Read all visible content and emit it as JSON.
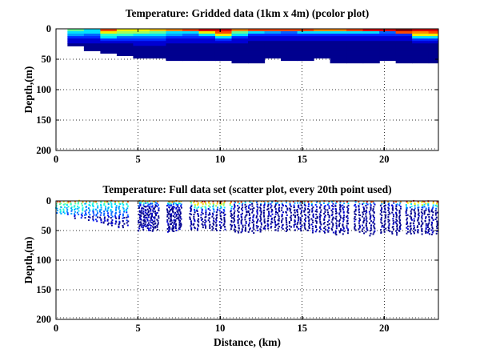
{
  "window": {
    "background": "#ffffff",
    "text_color": "#000000",
    "axis_color": "#000000",
    "grid_style": "dotted"
  },
  "palette_jet": [
    "#00008F",
    "#0000D2",
    "#0028FF",
    "#0064FF",
    "#00A0FF",
    "#00E0FF",
    "#2BFFD2",
    "#64FF96",
    "#A5FF55",
    "#F2F200",
    "#FFC800",
    "#FF8C00",
    "#FF4B00",
    "#E10000",
    "#960000"
  ],
  "chart_data": [
    {
      "type": "heatmap",
      "title": "Temperature: Gridded data (1km x 4m) (pcolor plot)",
      "xlabel": "",
      "ylabel": "Depth,(m)",
      "xlim": [
        0,
        23.3
      ],
      "ylim": [
        0,
        200
      ],
      "y_axis_direction": "reversed (depth increases downward)",
      "xticks": [
        0,
        5,
        10,
        15,
        20
      ],
      "yticks": [
        0,
        50,
        100,
        150,
        200
      ],
      "grid": "dotted",
      "cell_width_km": 1,
      "cell_height_m": 4,
      "note": "columns = [start_km, [jet palette indices for each 4m cell from surface down]]; white below = no data",
      "columns": [
        [
          0.7,
          [
            7,
            5,
            4,
            2,
            1,
            1,
            0
          ]
        ],
        [
          1.7,
          [
            5,
            5,
            3,
            2,
            1,
            1,
            0,
            0,
            0
          ]
        ],
        [
          2.7,
          [
            12,
            9,
            6,
            5,
            2,
            1,
            0,
            0,
            0,
            0
          ]
        ],
        [
          3.7,
          [
            9,
            8,
            6,
            3,
            2,
            1,
            0,
            0,
            0,
            0,
            0
          ]
        ],
        [
          4.7,
          [
            9,
            8,
            5,
            3,
            2,
            1,
            1,
            0,
            0,
            0,
            0,
            0
          ]
        ],
        [
          5.7,
          [
            10,
            7,
            5,
            3,
            2,
            1,
            1,
            0,
            0,
            0,
            0,
            0
          ]
        ],
        [
          6.7,
          [
            11,
            5,
            4,
            2,
            1,
            1,
            0,
            0,
            0,
            0,
            0,
            0,
            0
          ]
        ],
        [
          7.7,
          [
            12,
            5,
            3,
            2,
            1,
            1,
            0,
            0,
            0,
            0,
            0,
            0,
            0
          ]
        ],
        [
          8.7,
          [
            13,
            9,
            5,
            2,
            1,
            1,
            0,
            0,
            0,
            0,
            0,
            0,
            0
          ]
        ],
        [
          9.7,
          [
            13,
            12,
            9,
            5,
            2,
            1,
            0,
            0,
            0,
            0,
            0,
            0,
            0
          ]
        ],
        [
          10.7,
          [
            11,
            7,
            5,
            2,
            1,
            1,
            0,
            0,
            0,
            0,
            0,
            0,
            0,
            0
          ]
        ],
        [
          11.7,
          [
            12,
            5,
            2,
            1,
            1,
            0,
            0,
            0,
            0,
            0,
            0,
            0,
            0,
            0
          ]
        ],
        [
          12.7,
          [
            12,
            4,
            2,
            1,
            1,
            0,
            0,
            0,
            0,
            0,
            0,
            0
          ]
        ],
        [
          13.7,
          [
            12,
            3,
            2,
            1,
            1,
            0,
            0,
            0,
            0,
            0,
            0,
            0,
            0
          ]
        ],
        [
          14.7,
          [
            12,
            5,
            2,
            1,
            1,
            0,
            0,
            0,
            0,
            0,
            0,
            0,
            0
          ]
        ],
        [
          15.7,
          [
            11,
            5,
            2,
            1,
            1,
            0,
            0,
            0,
            0,
            0,
            0,
            0
          ]
        ],
        [
          16.7,
          [
            11,
            5,
            2,
            1,
            1,
            0,
            0,
            0,
            0,
            0,
            0,
            0,
            0,
            0
          ]
        ],
        [
          17.7,
          [
            12,
            5,
            2,
            1,
            1,
            0,
            0,
            0,
            0,
            0,
            0,
            0,
            0,
            0
          ]
        ],
        [
          18.7,
          [
            13,
            5,
            2,
            1,
            1,
            0,
            0,
            0,
            0,
            0,
            0,
            0,
            0,
            0
          ]
        ],
        [
          19.7,
          [
            13,
            3,
            2,
            1,
            1,
            0,
            0,
            0,
            0,
            0,
            0,
            0,
            0
          ]
        ],
        [
          20.7,
          [
            14,
            12,
            2,
            1,
            1,
            0,
            0,
            0,
            0,
            0,
            0,
            0,
            0,
            0
          ]
        ],
        [
          21.7,
          [
            13,
            11,
            9,
            5,
            2,
            1,
            0,
            0,
            0,
            0,
            0,
            0,
            0,
            0
          ]
        ],
        [
          22.7,
          [
            13,
            12,
            9,
            5,
            2,
            1,
            0,
            0,
            0,
            0,
            0,
            0,
            0,
            0
          ]
        ]
      ]
    },
    {
      "type": "scatter",
      "title": "Temperature: Full data set (scatter plot, every 20th point used)",
      "xlabel": "Distance, (km)",
      "ylabel": "Depth,(m)",
      "xlim": [
        0,
        23.3
      ],
      "ylim": [
        0,
        200
      ],
      "y_axis_direction": "reversed (depth increases downward)",
      "xticks": [
        0,
        5,
        10,
        15,
        20
      ],
      "yticks": [
        0,
        50,
        100,
        150,
        200
      ],
      "grid": "dotted",
      "scatter": {
        "marker_px": 2,
        "seed": 42,
        "x_start": 0.06,
        "x_end": 23.22,
        "profile_spacing_km": 0.2,
        "dense_spacing_km": 0.11,
        "dense_bands": [
          [
            4.95,
            6.25
          ],
          [
            6.65,
            7.65
          ]
        ],
        "gaps": [
          [
            4.35,
            4.95
          ],
          [
            6.25,
            6.62
          ],
          [
            7.68,
            8.15
          ],
          [
            10.28,
            10.62
          ],
          [
            17.9,
            18.12
          ],
          [
            19.55,
            19.8
          ],
          [
            21.0,
            21.3
          ]
        ],
        "bottom_depth_profile": [
          [
            0,
            20
          ],
          [
            1,
            27
          ],
          [
            2,
            33
          ],
          [
            3,
            40
          ],
          [
            4,
            45
          ],
          [
            5,
            47
          ],
          [
            6,
            49
          ],
          [
            7,
            51
          ],
          [
            8,
            51
          ],
          [
            9,
            48
          ],
          [
            10,
            50
          ],
          [
            11,
            52
          ],
          [
            12,
            52
          ],
          [
            13,
            50
          ],
          [
            14,
            52
          ],
          [
            15,
            52
          ],
          [
            16,
            54
          ],
          [
            17,
            55
          ],
          [
            18,
            55
          ],
          [
            19,
            56
          ],
          [
            20,
            55
          ],
          [
            21,
            55
          ],
          [
            22,
            57
          ],
          [
            23.3,
            58
          ]
        ],
        "regions": [
          {
            "x0": 0,
            "x1": 1.6,
            "surface": [
              12,
              11,
              10
            ],
            "stops": [
              [
                1.6,
                "S"
              ],
              [
                5,
                7
              ],
              [
                11,
                6
              ],
              [
                17,
                5
              ],
              [
                22,
                4
              ],
              [
                27,
                2
              ],
              [
                99,
                1
              ]
            ]
          },
          {
            "x0": 1.6,
            "x1": 4.5,
            "surface": [
              12,
              11,
              9
            ],
            "stops": [
              [
                1.6,
                "S"
              ],
              [
                5,
                6
              ],
              [
                11,
                5
              ],
              [
                18,
                4
              ],
              [
                26,
                3
              ],
              [
                34,
                1
              ],
              [
                99,
                0
              ]
            ]
          },
          {
            "x0": 4.5,
            "x1": 8.4,
            "surface": [
              11,
              10
            ],
            "stops": [
              [
                1.6,
                "S"
              ],
              [
                4.5,
                5
              ],
              [
                8,
                3
              ],
              [
                13,
                1
              ],
              [
                99,
                0
              ]
            ]
          },
          {
            "x0": 8.4,
            "x1": 10.7,
            "surface": [
              13,
              12
            ],
            "stops": [
              [
                2.2,
                "S"
              ],
              [
                6,
                10
              ],
              [
                9,
                8
              ],
              [
                13,
                5
              ],
              [
                18,
                2
              ],
              [
                99,
                0
              ]
            ]
          },
          {
            "x0": 10.7,
            "x1": 21.3,
            "surface": [
              13,
              12,
              11
            ],
            "stops": [
              [
                1.6,
                "S"
              ],
              [
                5,
                4
              ],
              [
                9,
                1
              ],
              [
                99,
                0
              ]
            ]
          },
          {
            "x0": 21.3,
            "x1": 23.3,
            "surface": [
              13,
              13,
              12
            ],
            "stops": [
              [
                2.2,
                "S"
              ],
              [
                6,
                9
              ],
              [
                10,
                5
              ],
              [
                14,
                3
              ],
              [
                99,
                0
              ]
            ]
          }
        ]
      }
    }
  ]
}
